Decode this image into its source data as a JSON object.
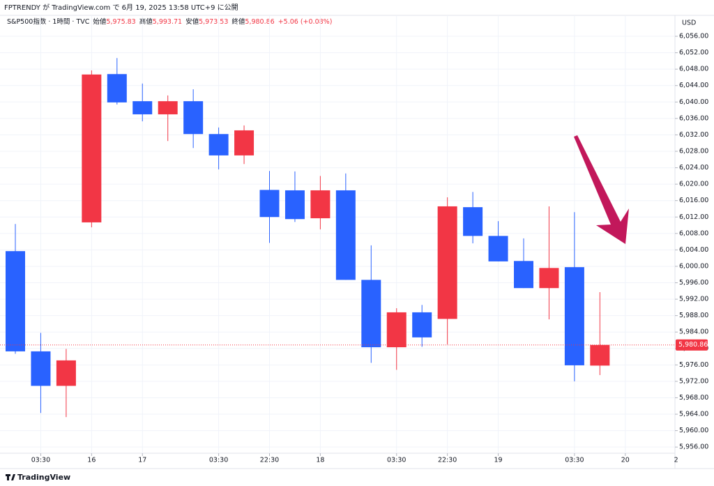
{
  "chart_data": {
    "type": "candlestick",
    "title": "FPTRENDY が TradingView.com で 6月 19, 2025 13:58 UTC+9 に公開",
    "legend": {
      "symbol": "S&P500指数 · 1時間 · TVC",
      "open_label": "始値",
      "open": "5,975.83",
      "high_label": "高値",
      "high": "5,993.71",
      "low_label": "安値",
      "low": "5,973.53",
      "close_label": "終値",
      "close": "5,980.86",
      "change": "+5.06 (+0.08%)"
    },
    "currency": "USD",
    "footer": "TradingView",
    "up_color": "#f23645",
    "down_color": "#2962ff",
    "open": [
      6003.7,
      5979.3,
      5970.9,
      6010.7,
      6046.8,
      6040.2,
      6037.0,
      6040.2,
      6032.2,
      6027.0,
      6018.6,
      6018.5,
      6011.7,
      6018.5,
      5996.7,
      5980.3,
      5988.8,
      5987.2,
      6014.4,
      6007.4,
      6001.3,
      5994.7,
      5999.8,
      5975.83
    ],
    "high": [
      6010.3,
      5983.8,
      5979.9,
      6047.7,
      6050.7,
      6044.5,
      6041.6,
      6043.1,
      6033.8,
      6034.3,
      6023.2,
      6023.1,
      6022.0,
      6022.6,
      6005.1,
      5989.8,
      5990.6,
      6016.8,
      6018.1,
      6011.0,
      6006.8,
      6014.6,
      6013.2,
      5993.71
    ],
    "low": [
      5978.7,
      5964.3,
      5963.3,
      6009.5,
      6039.4,
      6035.3,
      6030.5,
      6028.8,
      6023.6,
      6024.9,
      6005.7,
      6010.8,
      6009.0,
      5996.7,
      5976.5,
      5974.8,
      5980.4,
      5981.0,
      6005.6,
      6001.2,
      5994.7,
      5987.1,
      5972.0,
      5973.53
    ],
    "close": [
      5979.3,
      5970.9,
      5977.1,
      6046.7,
      6039.9,
      6037.0,
      6040.2,
      6032.2,
      6027.0,
      6033.1,
      6012.0,
      6011.5,
      6018.5,
      5996.7,
      5980.3,
      5988.8,
      5982.7,
      6014.6,
      6007.4,
      6001.2,
      5994.7,
      5999.6,
      5975.9,
      5980.86
    ],
    "last_price": {
      "value": 5980.86,
      "label": "5,980.86"
    },
    "xticks": [
      {
        "value": 1,
        "label": "03:30"
      },
      {
        "value": 3,
        "label": "16"
      },
      {
        "value": 5,
        "label": "17"
      },
      {
        "value": 8,
        "label": "03:30"
      },
      {
        "value": 10,
        "label": "22:30"
      },
      {
        "value": 12,
        "label": "18"
      },
      {
        "value": 15,
        "label": "03:30"
      },
      {
        "value": 17,
        "label": "22:30"
      },
      {
        "value": 19,
        "label": "19"
      },
      {
        "value": 22,
        "label": "03:30"
      },
      {
        "value": 24,
        "label": "20"
      },
      {
        "value": 26,
        "label": "2"
      }
    ],
    "ylim": [
      5954.5,
      6061.1
    ],
    "yticks": [
      {
        "value": 5956,
        "label": "5,956.00"
      },
      {
        "value": 5960,
        "label": "5,960.00"
      },
      {
        "value": 5964,
        "label": "5,964.00"
      },
      {
        "value": 5968,
        "label": "5,968.00"
      },
      {
        "value": 5972,
        "label": "5,972.00"
      },
      {
        "value": 5976,
        "label": "5,976.00"
      },
      {
        "value": 5980,
        "label": "5,980.00"
      },
      {
        "value": 5984,
        "label": "5,984.00"
      },
      {
        "value": 5988,
        "label": "5,988.00"
      },
      {
        "value": 5992,
        "label": "5,992.00"
      },
      {
        "value": 5996,
        "label": "5,996.00"
      },
      {
        "value": 6000,
        "label": "6,000.00"
      },
      {
        "value": 6004,
        "label": "6,004.00"
      },
      {
        "value": 6008,
        "label": "6,008.00"
      },
      {
        "value": 6012,
        "label": "6,012.00"
      },
      {
        "value": 6016,
        "label": "6,016.00"
      },
      {
        "value": 6020,
        "label": "6,020.00"
      },
      {
        "value": 6024,
        "label": "6,024.00"
      },
      {
        "value": 6028,
        "label": "6,028.00"
      },
      {
        "value": 6032,
        "label": "6,032.00"
      },
      {
        "value": 6036,
        "label": "6,036.00"
      },
      {
        "value": 6040,
        "label": "6,040.00"
      },
      {
        "value": 6044,
        "label": "6,044.00"
      },
      {
        "value": 6048,
        "label": "6,048.00"
      },
      {
        "value": 6052,
        "label": "6,052.00"
      },
      {
        "value": 6056,
        "label": "6,056.00"
      }
    ],
    "grid": true
  }
}
